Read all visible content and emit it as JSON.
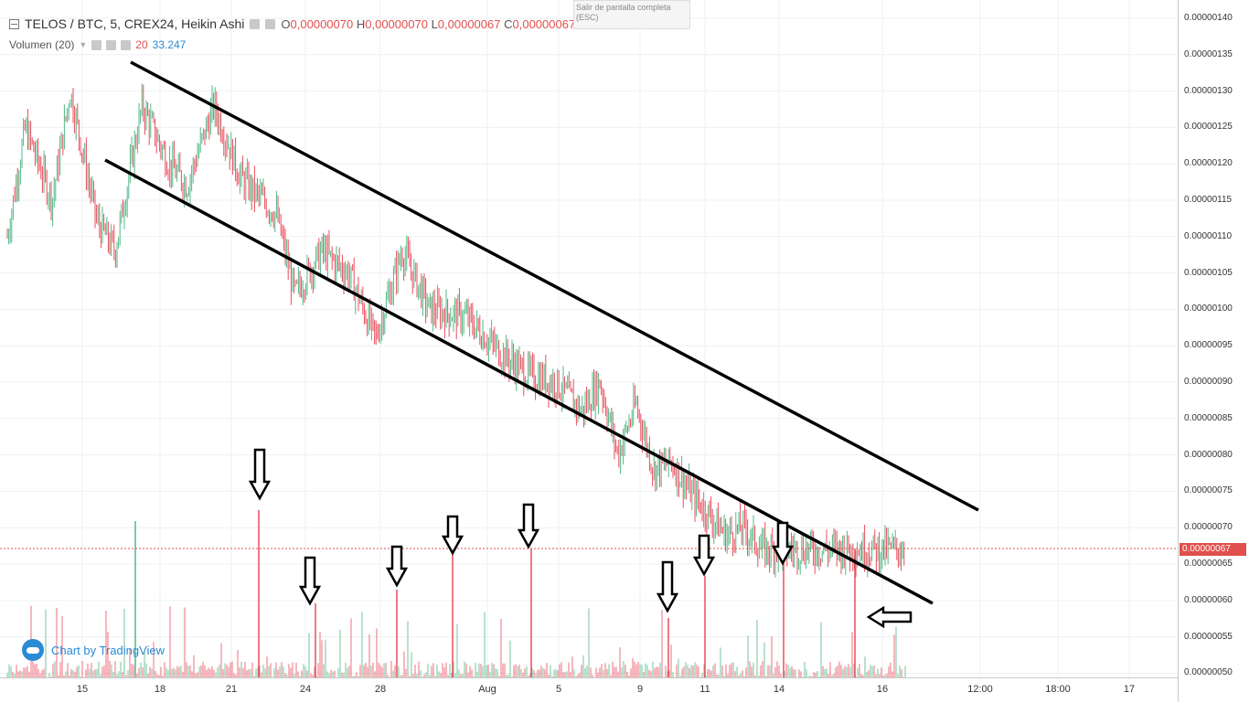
{
  "header": {
    "symbol": "TELOS / BTC, 5, CREX24, Heikin Ashi",
    "open_label": "O",
    "open_value": "0,00000070",
    "high_label": "H",
    "high_value": "0,00000070",
    "low_label": "L",
    "low_value": "0,00000067",
    "close_label": "C",
    "close_value": "0,00000067"
  },
  "volume": {
    "label": "Volumen (20)",
    "value1": "20",
    "value2": "33.247"
  },
  "fullscreen_tip": "Salir de pantalla completa (ESC)",
  "brand": "Chart by TradingView",
  "last_price_label": "0.00000067",
  "price_axis": [
    "0.00000140",
    "0.00000135",
    "0.00000130",
    "0.00000125",
    "0.00000120",
    "0.00000115",
    "0.00000110",
    "0.00000105",
    "0.00000100",
    "0.00000095",
    "0.00000090",
    "0.00000085",
    "0.00000080",
    "0.00000075",
    "0.00000070",
    "0.00000065",
    "0.00000060",
    "0.00000055",
    "0.00000050"
  ],
  "time_axis": [
    "15",
    "18",
    "21",
    "24",
    "28",
    "Aug",
    "5",
    "9",
    "11",
    "14",
    "16",
    "12:00",
    "18:00",
    "17"
  ],
  "colors": {
    "up": "#53b987",
    "down": "#eb4d5c",
    "line": "#000000",
    "price_line": "#e0504d"
  },
  "chart_data": {
    "type": "candlestick",
    "title": "TELOS / BTC, 5, CREX24, Heikin Ashi",
    "ylim": [
      5e-07,
      1.4e-06
    ],
    "last_price": 6.7e-07,
    "price_path": [
      [
        0,
        1.1e-06
      ],
      [
        0.02,
        1.25e-06
      ],
      [
        0.05,
        1.15e-06
      ],
      [
        0.07,
        1.3e-06
      ],
      [
        0.1,
        1.12e-06
      ],
      [
        0.12,
        1.08e-06
      ],
      [
        0.15,
        1.28e-06
      ],
      [
        0.18,
        1.2e-06
      ],
      [
        0.2,
        1.17e-06
      ],
      [
        0.23,
        1.28e-06
      ],
      [
        0.26,
        1.18e-06
      ],
      [
        0.3,
        1.13e-06
      ],
      [
        0.32,
        1.02e-06
      ],
      [
        0.35,
        1.08e-06
      ],
      [
        0.38,
        1.05e-06
      ],
      [
        0.41,
        9.6e-07
      ],
      [
        0.44,
        1.08e-06
      ],
      [
        0.47,
        1e-06
      ],
      [
        0.51,
        9.9e-07
      ],
      [
        0.55,
        9.4e-07
      ],
      [
        0.58,
        9.1e-07
      ],
      [
        0.61,
        9e-07
      ],
      [
        0.64,
        8.6e-07
      ],
      [
        0.66,
        9e-07
      ],
      [
        0.68,
        8e-07
      ],
      [
        0.7,
        8.7e-07
      ],
      [
        0.72,
        7.8e-07
      ],
      [
        0.74,
        7.9e-07
      ],
      [
        0.76,
        7.5e-07
      ],
      [
        0.78,
        7.2e-07
      ],
      [
        0.8,
        6.9e-07
      ],
      [
        0.82,
        7e-07
      ],
      [
        0.84,
        6.7e-07
      ]
    ]
  }
}
